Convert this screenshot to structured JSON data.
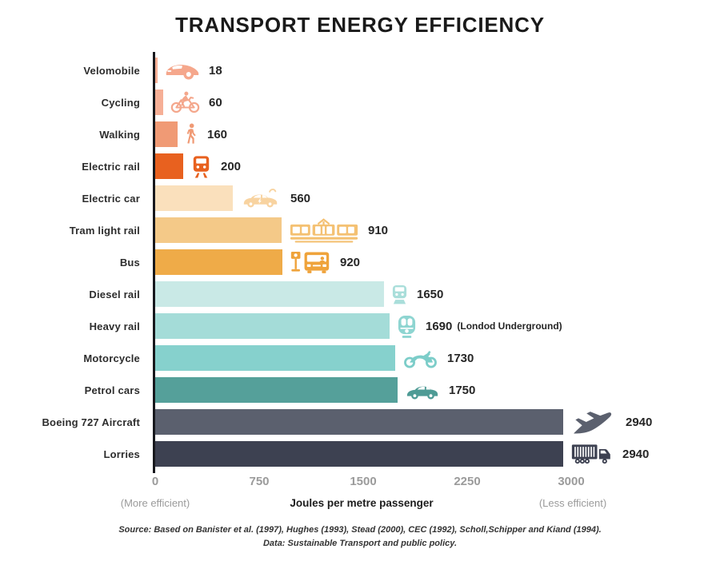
{
  "title": "TRANSPORT ENERGY EFFICIENCY",
  "chart_data": {
    "type": "bar",
    "orientation": "horizontal",
    "title": "TRANSPORT ENERGY EFFICIENCY",
    "xlabel": "Joules per metre passenger",
    "xlim": [
      0,
      3000
    ],
    "x_ticks": [
      0,
      750,
      1500,
      2250,
      3000
    ],
    "grid": false,
    "legend": "none",
    "left_annotation": "(More efficient)",
    "right_annotation": "(Less efficient)",
    "categories": [
      "Velomobile",
      "Cycling",
      "Walking",
      "Electric rail",
      "Electric car",
      "Tram light rail",
      "Bus",
      "Diesel rail",
      "Heavy rail",
      "Motorcycle",
      "Petrol cars",
      "Boeing 727 Aircraft",
      "Lorries"
    ],
    "values": [
      18,
      60,
      160,
      200,
      560,
      910,
      920,
      1650,
      1690,
      1730,
      1750,
      2940,
      2940
    ],
    "annotations": {
      "Heavy rail": "(Londod Underground)"
    }
  },
  "rows": [
    {
      "label": "Velomobile",
      "value": 18,
      "note": "",
      "bar_color": "#F7B096",
      "icon_color": "#F5A78C",
      "icon": "velomobile-icon"
    },
    {
      "label": "Cycling",
      "value": 60,
      "note": "",
      "bar_color": "#F6AF96",
      "icon_color": "#F4A78C",
      "icon": "bicycle-icon"
    },
    {
      "label": "Walking",
      "value": 160,
      "note": "",
      "bar_color": "#F09A75",
      "icon_color": "#F09A75",
      "icon": "pedestrian-icon"
    },
    {
      "label": "Electric rail",
      "value": 200,
      "note": "",
      "bar_color": "#E8611F",
      "icon_color": "#E8611F",
      "icon": "electric-train-icon"
    },
    {
      "label": "Electric car",
      "value": 560,
      "note": "",
      "bar_color": "#FAE0BC",
      "icon_color": "#F8D3A0",
      "icon": "electric-car-icon"
    },
    {
      "label": "Tram light rail",
      "value": 910,
      "note": "",
      "bar_color": "#F4C988",
      "icon_color": "#F4C173",
      "icon": "tram-icon"
    },
    {
      "label": "Bus",
      "value": 920,
      "note": "",
      "bar_color": "#EFAB48",
      "icon_color": "#EFA33B",
      "icon": "bus-stop-icon"
    },
    {
      "label": "Diesel rail",
      "value": 1650,
      "note": "",
      "bar_color": "#C9E9E6",
      "icon_color": "#A9DEDA",
      "icon": "diesel-train-icon"
    },
    {
      "label": "Heavy rail",
      "value": 1690,
      "note": "(Londod Underground)",
      "bar_color": "#A4DCD8",
      "icon_color": "#8ED5D1",
      "icon": "underground-train-icon"
    },
    {
      "label": "Motorcycle",
      "value": 1730,
      "note": "",
      "bar_color": "#86D1CD",
      "icon_color": "#7CCDC9",
      "icon": "motorcycle-icon"
    },
    {
      "label": "Petrol cars",
      "value": 1750,
      "note": "",
      "bar_color": "#55A09A",
      "icon_color": "#4E9B95",
      "icon": "car-icon"
    },
    {
      "label": "Boeing 727 Aircraft",
      "value": 2940,
      "note": "",
      "bar_color": "#5B606E",
      "icon_color": "#5B606E",
      "icon": "airplane-icon"
    },
    {
      "label": "Lorries",
      "value": 2940,
      "note": "",
      "bar_color": "#3D4151",
      "icon_color": "#3D4151",
      "icon": "truck-icon"
    }
  ],
  "axis": {
    "ticks": [
      {
        "label": "0",
        "value": 0
      },
      {
        "label": "750",
        "value": 750
      },
      {
        "label": "1500",
        "value": 1500
      },
      {
        "label": "2250",
        "value": 2250
      },
      {
        "label": "3000",
        "value": 3000
      }
    ],
    "max": 3000,
    "xlabel": "Joules per metre passenger",
    "more_note": "(More efficient)",
    "less_note": "(Less efficient)"
  },
  "source": {
    "line1": "Source: Based on Banister et al. (1997), Hughes (1993), Stead (2000), CEC (1992), Scholl,Schipper and Kiand (1994).",
    "line2": "Data: Sustainable Transport and public policy."
  }
}
